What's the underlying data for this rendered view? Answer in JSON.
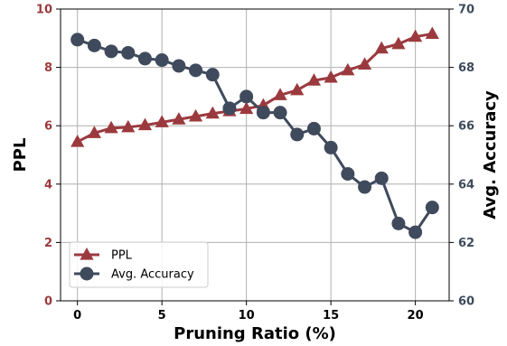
{
  "chart_data": {
    "type": "line",
    "xlabel": "Pruning Ratio (%)",
    "x": [
      0,
      1,
      2,
      3,
      4,
      5,
      6,
      7,
      8,
      9,
      10,
      11,
      12,
      13,
      14,
      15,
      16,
      17,
      18,
      19,
      20,
      21
    ],
    "xticks": [
      "0",
      "5",
      "10",
      "15",
      "20"
    ],
    "xlim": [
      -1,
      22
    ],
    "grid": true,
    "legend_position": "lower-left",
    "left_axis": {
      "label": "PPL",
      "ylim": [
        0,
        10
      ],
      "ticks": [
        "0",
        "2",
        "4",
        "6",
        "8",
        "10"
      ],
      "color": "#9b3a3e"
    },
    "right_axis": {
      "label": "Avg. Accuracy",
      "ylim": [
        60,
        70
      ],
      "ticks": [
        "60",
        "62",
        "64",
        "66",
        "68",
        "70"
      ],
      "color": "#3f4a5c"
    },
    "series": [
      {
        "name": "PPL",
        "axis": "left",
        "marker": "triangle",
        "color": "#9b3a3e",
        "values": [
          5.45,
          5.75,
          5.92,
          5.95,
          6.02,
          6.12,
          6.22,
          6.32,
          6.42,
          6.5,
          6.58,
          6.7,
          7.05,
          7.22,
          7.55,
          7.65,
          7.9,
          8.1,
          8.65,
          8.8,
          9.05,
          9.15
        ]
      },
      {
        "name": "Avg. Accuracy",
        "axis": "right",
        "marker": "circle",
        "color": "#3f4a5c",
        "values": [
          68.95,
          68.75,
          68.55,
          68.5,
          68.3,
          68.25,
          68.05,
          67.9,
          67.75,
          66.6,
          67.0,
          66.45,
          66.45,
          65.7,
          65.9,
          65.25,
          64.35,
          63.9,
          64.2,
          62.65,
          62.35,
          63.2
        ]
      }
    ]
  }
}
